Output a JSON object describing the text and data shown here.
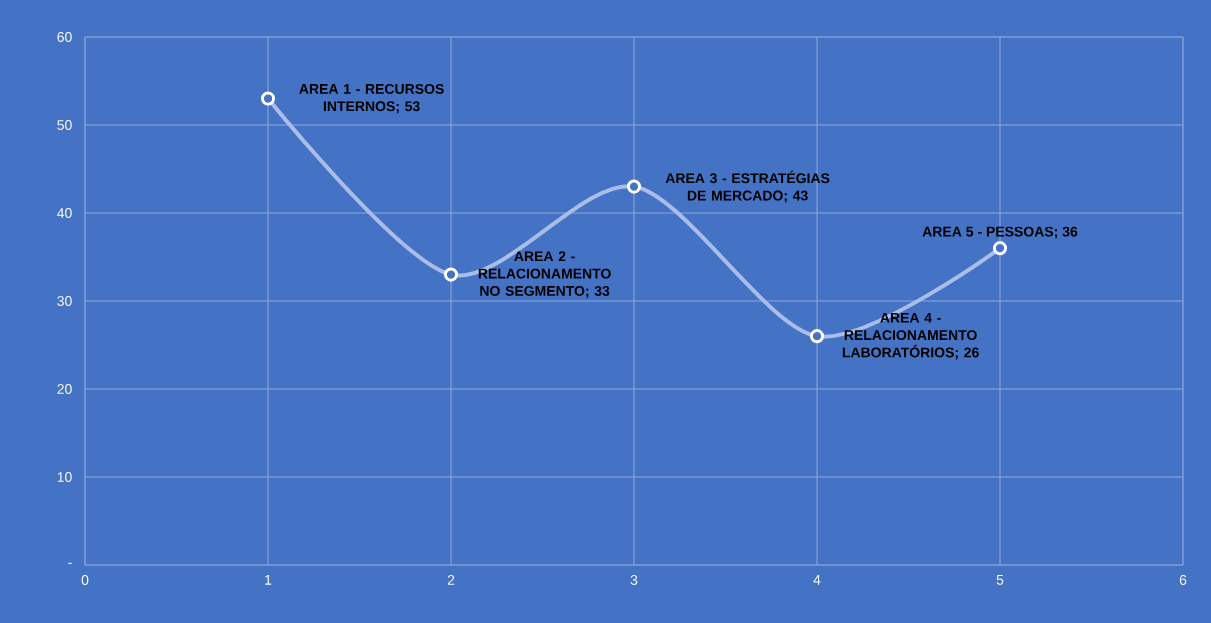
{
  "chart_data": {
    "type": "line",
    "x": [
      1,
      2,
      3,
      4,
      5
    ],
    "series": [
      {
        "color": "#a9bde8",
        "values": [
          53,
          33,
          43,
          26,
          36
        ]
      }
    ],
    "xlim": [
      0,
      6
    ],
    "xticks": [
      0,
      1,
      2,
      3,
      4,
      5,
      6
    ],
    "ylim": [
      0,
      60
    ],
    "yticks": [
      {
        "value": 0,
        "label": "-"
      },
      10,
      20,
      30,
      40,
      50,
      60
    ],
    "grid": true,
    "marker": "circle",
    "line_style": "solid",
    "annotations": [
      {
        "text": "AREA 1 - RECURSOS INTERNOS; 53",
        "x": 1,
        "y": 53
      },
      {
        "text": "AREA 2 - RELACIONAMENTO NO SEGMENTO; 33",
        "x": 2,
        "y": 33
      },
      {
        "text": "AREA 3 - ESTRATÉGIAS DE MERCADO; 43",
        "x": 3,
        "y": 43
      },
      {
        "text": "AREA 4 - RELACIONAMENTO LABORATÓRIOS; 26",
        "x": 4,
        "y": 26
      },
      {
        "text": "AREA 5 - PESSOAS; 36",
        "x": 5,
        "y": 36
      }
    ]
  }
}
